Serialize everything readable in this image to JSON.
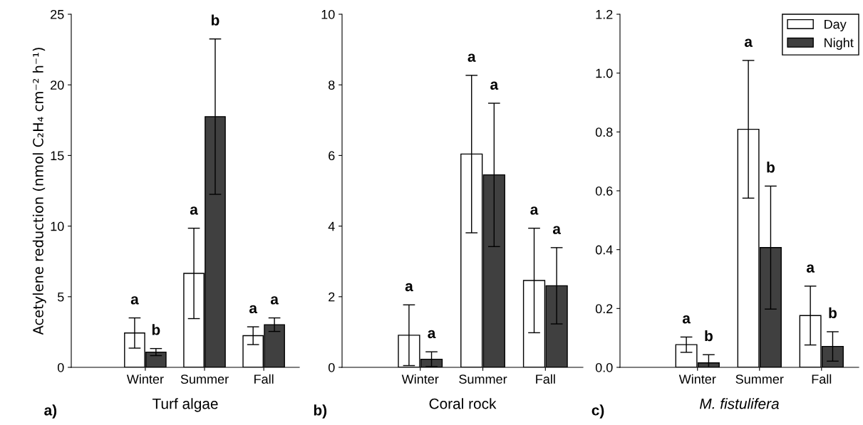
{
  "chart_data": [
    {
      "type": "bar",
      "xlabel": "Turf algae",
      "ylabel": "Acetylene reduction (nmol C₂H₄ cm⁻² h⁻¹)",
      "categories": [
        "Winter",
        "Summer",
        "Fall"
      ],
      "ylim": [
        0,
        25
      ],
      "yticks": [
        0,
        5,
        10,
        15,
        20,
        25
      ],
      "grid": false,
      "legend": false,
      "annotations": [
        "a)",
        "a",
        "b",
        "a",
        "b",
        "a",
        "a"
      ],
      "series": [
        {
          "color": "#ffffff",
          "values": [
            2.43,
            6.65,
            2.24
          ],
          "errors": [
            1.07,
            3.2,
            0.63
          ]
        },
        {
          "color": "#404040",
          "values": [
            1.08,
            17.75,
            3.02
          ],
          "errors": [
            0.25,
            5.5,
            0.48
          ]
        }
      ]
    },
    {
      "type": "bar",
      "xlabel": "Coral rock",
      "categories": [
        "Winter",
        "Summer",
        "Fall"
      ],
      "ylim": [
        0,
        10
      ],
      "yticks": [
        0,
        2,
        4,
        6,
        8,
        10
      ],
      "grid": false,
      "legend": false,
      "annotations": [
        "b)",
        "a",
        "a",
        "a",
        "a",
        "a",
        "a"
      ],
      "series": [
        {
          "color": "#ffffff",
          "values": [
            0.91,
            6.04,
            2.46
          ],
          "errors": [
            0.86,
            2.23,
            1.48
          ]
        },
        {
          "color": "#404040",
          "values": [
            0.23,
            5.45,
            2.31
          ],
          "errors": [
            0.21,
            2.03,
            1.08
          ]
        }
      ]
    },
    {
      "type": "bar",
      "xlabel": "M. fistulifera",
      "categories": [
        "Winter",
        "Summer",
        "Fall"
      ],
      "ylim": [
        0,
        1.2
      ],
      "yticks": [
        {
          "value": 0,
          "label": "0.0"
        },
        {
          "value": 0.2,
          "label": "0.2"
        },
        {
          "value": 0.4,
          "label": "0.4"
        },
        {
          "value": 0.6,
          "label": "0.6"
        },
        {
          "value": 0.8,
          "label": "0.8"
        },
        {
          "value": 1.0,
          "label": "1.0"
        },
        {
          "value": 1.2,
          "label": "1.2"
        }
      ],
      "grid": false,
      "legend": "top right",
      "annotations": [
        "c)",
        "a",
        "b",
        "a",
        "b",
        "a",
        "b"
      ],
      "series": [
        {
          "name": "Day",
          "color": "#ffffff",
          "values": [
            0.077,
            0.809,
            0.176
          ],
          "errors": [
            0.026,
            0.234,
            0.1
          ]
        },
        {
          "name": "Night",
          "color": "#404040",
          "values": [
            0.015,
            0.407,
            0.071
          ],
          "errors": [
            0.028,
            0.209,
            0.05
          ]
        }
      ]
    }
  ]
}
